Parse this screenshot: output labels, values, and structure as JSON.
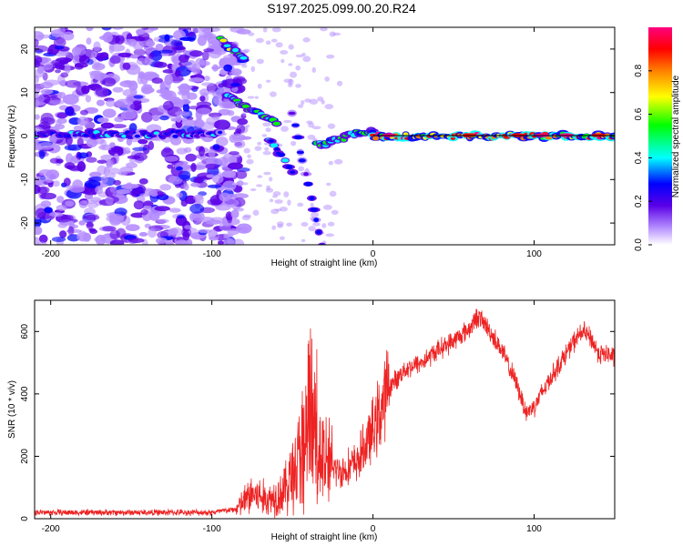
{
  "title": "S197.2025.099.00.20.R24",
  "chart_data": [
    {
      "type": "heatmap",
      "xlabel": "Height of straight line (km)",
      "ylabel": "Frequency (Hz)",
      "xlim": [
        -210,
        150
      ],
      "ylim": [
        -25,
        25
      ],
      "x_ticks": [
        -200,
        -100,
        0,
        100
      ],
      "y_ticks": [
        -20,
        -10,
        0,
        10,
        20
      ],
      "colorbar": {
        "label": "Normalized spectral amplitude",
        "range": [
          0,
          1
        ],
        "ticks": [
          0.0,
          0.2,
          0.4,
          0.6,
          0.8
        ],
        "colors": [
          "#ffffff",
          "#b48cff",
          "#5a00e6",
          "#0000ff",
          "#00ffff",
          "#00ff00",
          "#ffff00",
          "#ff8000",
          "#ff0000",
          "#ff0080"
        ]
      },
      "ridges": [
        {
          "from": [
            -210,
            0.5
          ],
          "to": [
            -95,
            0.5
          ],
          "amplitude": 0.35
        },
        {
          "from": [
            -95,
            22
          ],
          "to": [
            -80,
            18
          ],
          "amplitude": 0.6
        },
        {
          "from": [
            -90,
            9
          ],
          "to": [
            -60,
            3
          ],
          "amplitude": 0.55
        },
        {
          "from": [
            -65,
            -1
          ],
          "to": [
            -50,
            -8
          ],
          "amplitude": 0.4
        },
        {
          "from": [
            -50,
            5
          ],
          "to": [
            -32,
            -25
          ],
          "amplitude": 0.3
        },
        {
          "from": [
            -35,
            -2
          ],
          "to": [
            0,
            1.5
          ],
          "amplitude": 0.5
        },
        {
          "from": [
            0,
            0
          ],
          "to": [
            150,
            0
          ],
          "amplitude": 0.85
        }
      ]
    },
    {
      "type": "line",
      "xlabel": "Height of straight line (km)",
      "ylabel": "SNR (10 * v/v)",
      "xlim": [
        -210,
        150
      ],
      "ylim": [
        0,
        700
      ],
      "x_ticks": [
        -200,
        -100,
        0,
        100
      ],
      "y_ticks": [
        0,
        200,
        400,
        600
      ],
      "color": "#ee2222",
      "envelope": {
        "x": [
          -210,
          -150,
          -100,
          -85,
          -75,
          -65,
          -55,
          -45,
          -40,
          -30,
          -20,
          -10,
          0,
          10,
          20,
          30,
          40,
          50,
          60,
          65,
          70,
          80,
          90,
          95,
          100,
          110,
          120,
          125,
          130,
          135,
          140,
          150
        ],
        "y": [
          20,
          20,
          20,
          30,
          80,
          60,
          90,
          200,
          300,
          180,
          150,
          180,
          280,
          420,
          480,
          500,
          540,
          570,
          610,
          650,
          620,
          540,
          420,
          340,
          360,
          450,
          530,
          570,
          600,
          580,
          530,
          520
        ]
      }
    }
  ]
}
